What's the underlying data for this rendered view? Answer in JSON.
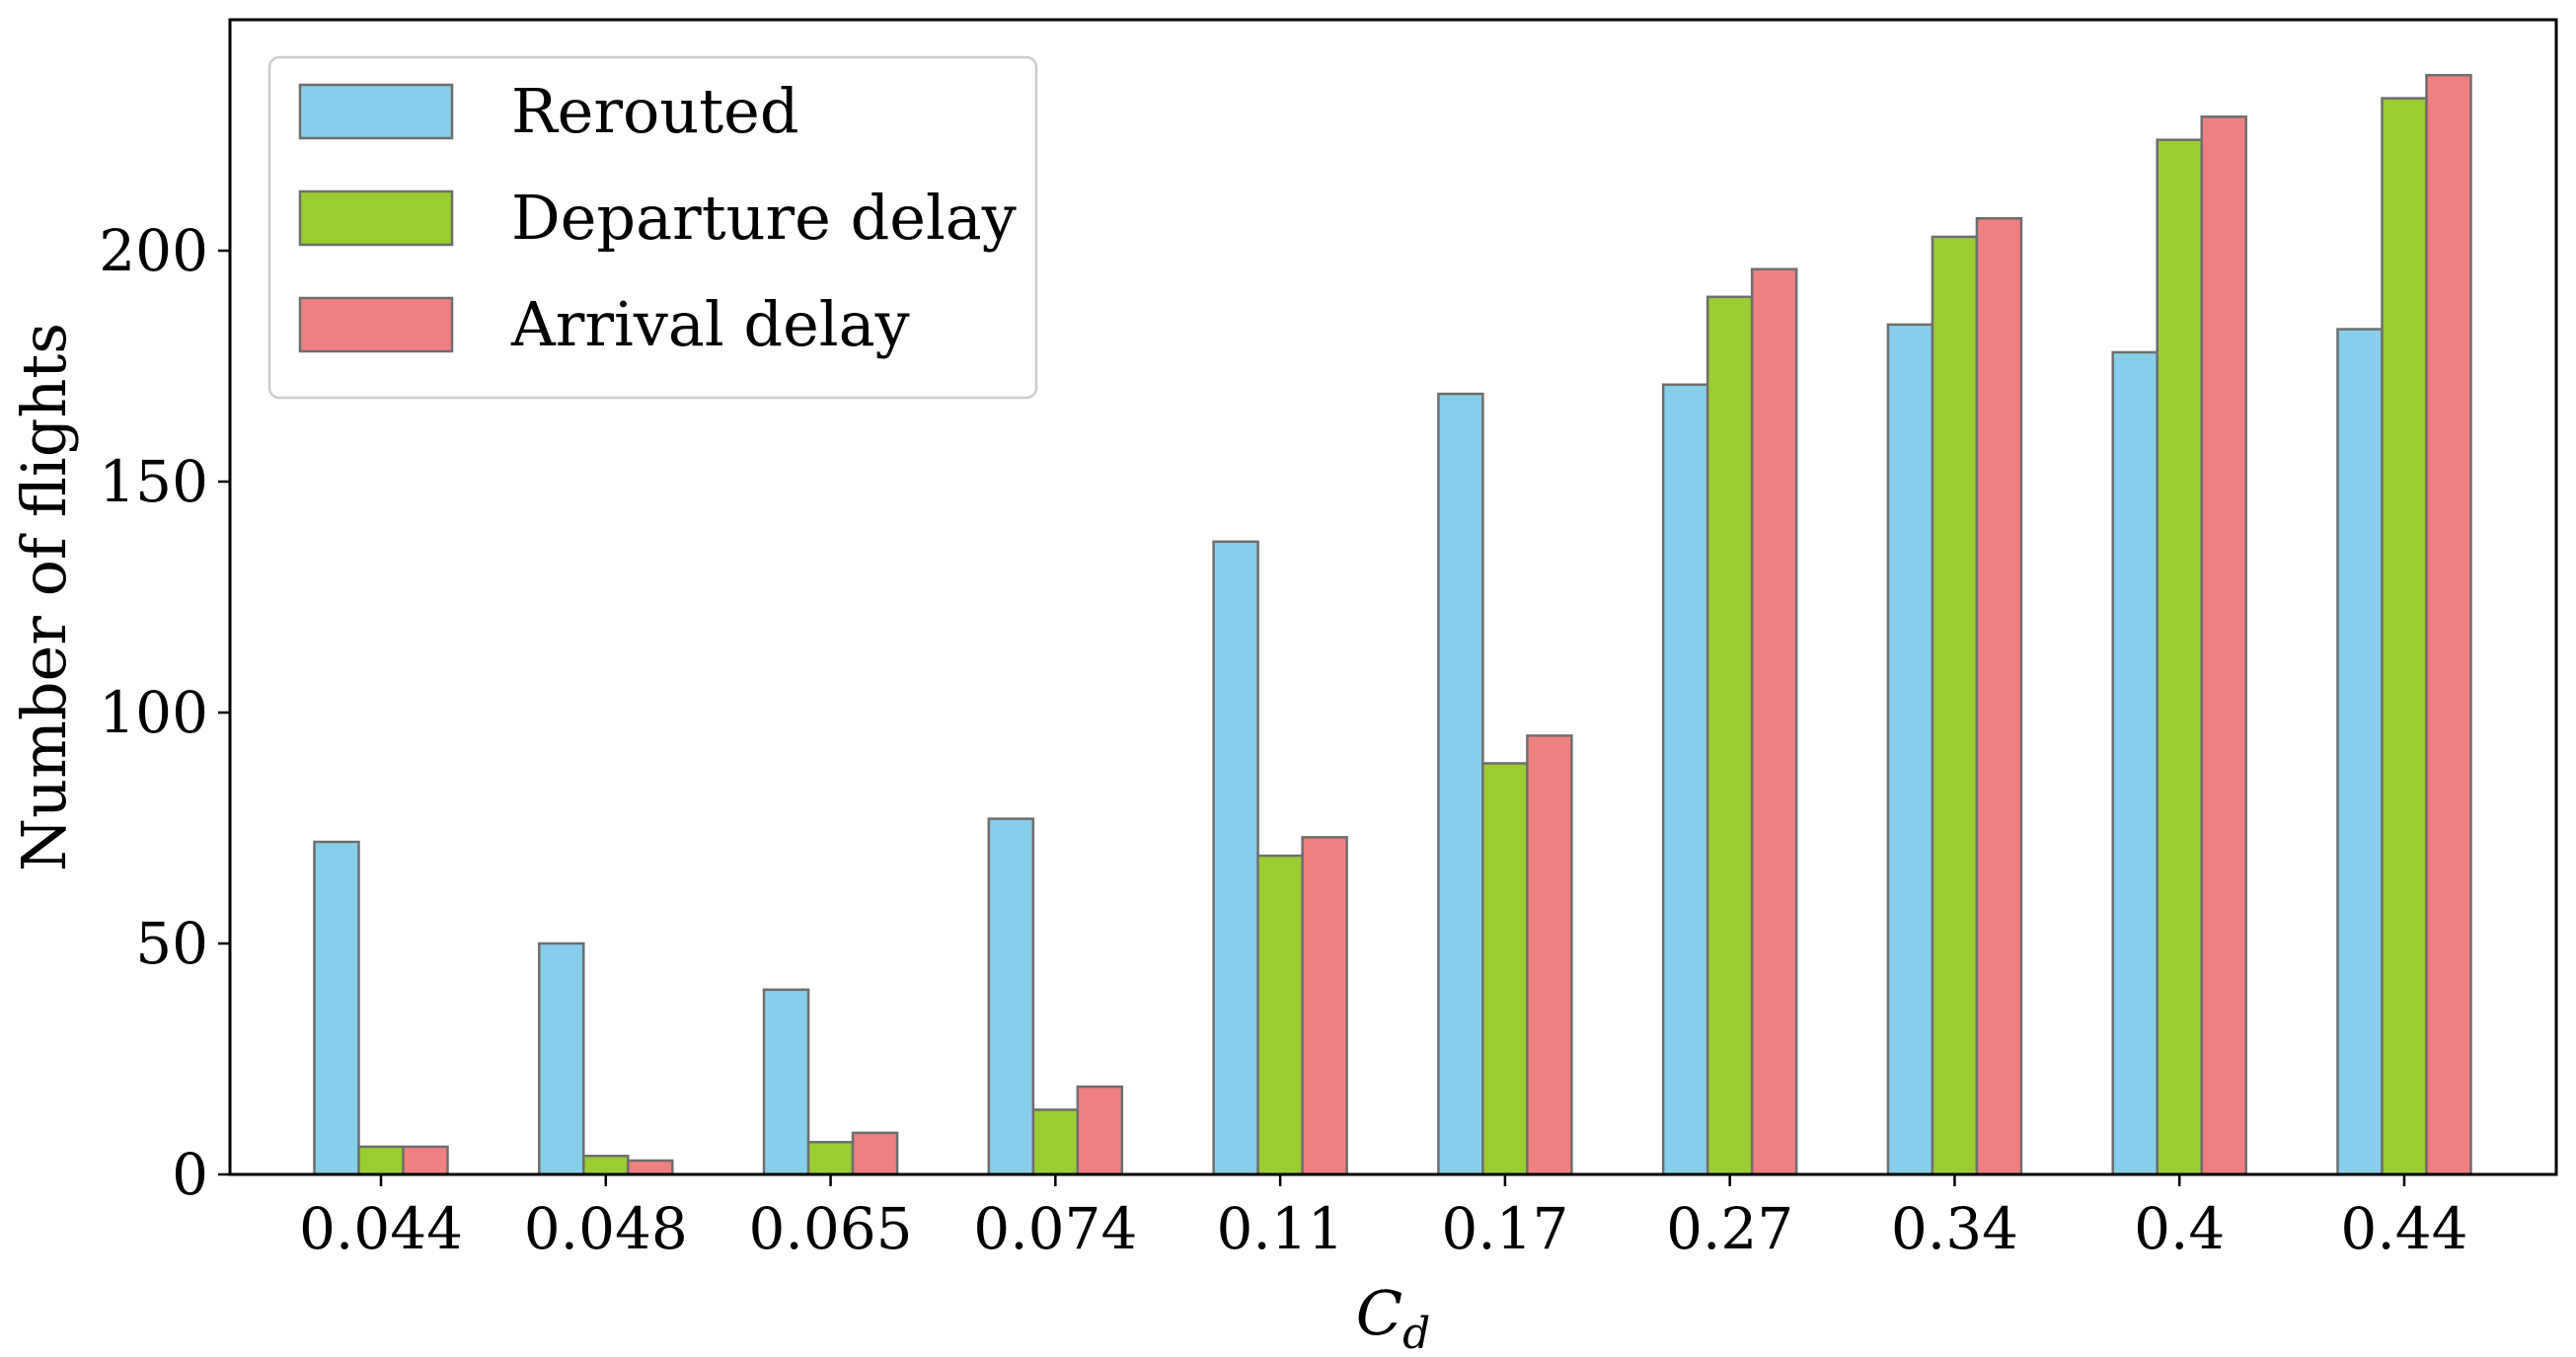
{
  "chart_data": {
    "type": "bar",
    "categories": [
      "0.044",
      "0.048",
      "0.065",
      "0.074",
      "0.11",
      "0.17",
      "0.27",
      "0.34",
      "0.4",
      "0.44"
    ],
    "series": [
      {
        "name": "Rerouted",
        "color": "#87ceeb",
        "values": [
          72,
          50,
          40,
          77,
          137,
          169,
          171,
          184,
          178,
          183
        ]
      },
      {
        "name": "Departure delay",
        "color": "#9acd32",
        "values": [
          6,
          4,
          7,
          14,
          69,
          89,
          190,
          203,
          224,
          233
        ]
      },
      {
        "name": "Arrival delay",
        "color": "#f08080",
        "values": [
          6,
          3,
          9,
          19,
          73,
          95,
          196,
          207,
          229,
          238
        ]
      }
    ],
    "xlabel_base": "C",
    "xlabel_sub": "d",
    "ylabel": "Number of flights",
    "yticks": [
      0,
      50,
      100,
      150,
      200
    ],
    "ylim": [
      0,
      250
    ],
    "bar_edge_color": "#6e6e6e",
    "legend_position": "top-left",
    "grid": false
  }
}
